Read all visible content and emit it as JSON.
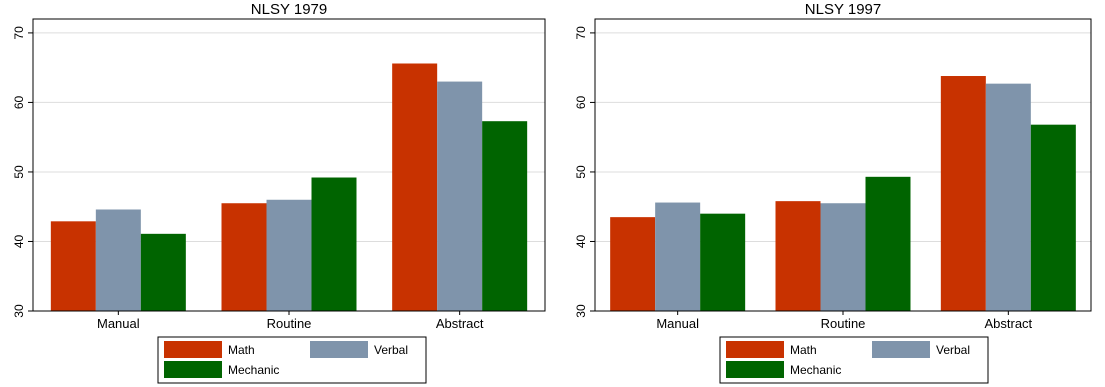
{
  "colors": {
    "math": "#c83200",
    "verbal": "#7f94ab",
    "mechanic": "#006400",
    "grid": "#dddddd",
    "frame": "#000000"
  },
  "chart_data": [
    {
      "type": "bar",
      "title": "NLSY 1979",
      "xlabel": "",
      "ylabel": "",
      "categories": [
        "Manual",
        "Routine",
        "Abstract"
      ],
      "series": [
        {
          "name": "Math",
          "values": [
            42.9,
            45.5,
            65.6
          ]
        },
        {
          "name": "Verbal",
          "values": [
            44.6,
            46.0,
            63.0
          ]
        },
        {
          "name": "Mechanic",
          "values": [
            41.1,
            49.2,
            57.3
          ]
        }
      ],
      "ylim": [
        30,
        72
      ],
      "yticks": [
        30,
        40,
        50,
        60,
        70
      ],
      "grid": true,
      "legend": "bottom"
    },
    {
      "type": "bar",
      "title": "NLSY 1997",
      "xlabel": "",
      "ylabel": "",
      "categories": [
        "Manual",
        "Routine",
        "Abstract"
      ],
      "series": [
        {
          "name": "Math",
          "values": [
            43.5,
            45.8,
            63.8
          ]
        },
        {
          "name": "Verbal",
          "values": [
            45.6,
            45.5,
            62.7
          ]
        },
        {
          "name": "Mechanic",
          "values": [
            44.0,
            49.3,
            56.8
          ]
        }
      ],
      "ylim": [
        30,
        72
      ],
      "yticks": [
        30,
        40,
        50,
        60,
        70
      ],
      "grid": true,
      "legend": "bottom"
    }
  ]
}
